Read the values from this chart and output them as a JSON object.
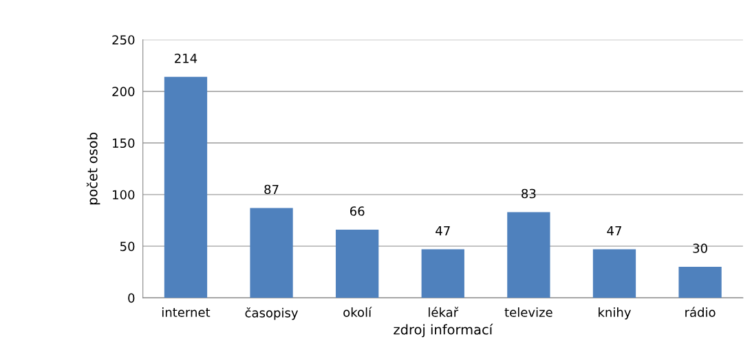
{
  "chart_data": {
    "type": "bar",
    "xlabel": "zdroj informací",
    "ylabel": "počet osob",
    "categories": [
      "internet",
      "časopisy",
      "okolí",
      "lékař",
      "televize",
      "knihy",
      "rádio"
    ],
    "values": [
      214,
      87,
      66,
      47,
      83,
      47,
      30
    ],
    "color": "#4f81bd",
    "ylim": [
      0,
      250
    ],
    "yticks": [
      0,
      50,
      100,
      150,
      200,
      250
    ],
    "grid": "y",
    "data_labels": true
  }
}
